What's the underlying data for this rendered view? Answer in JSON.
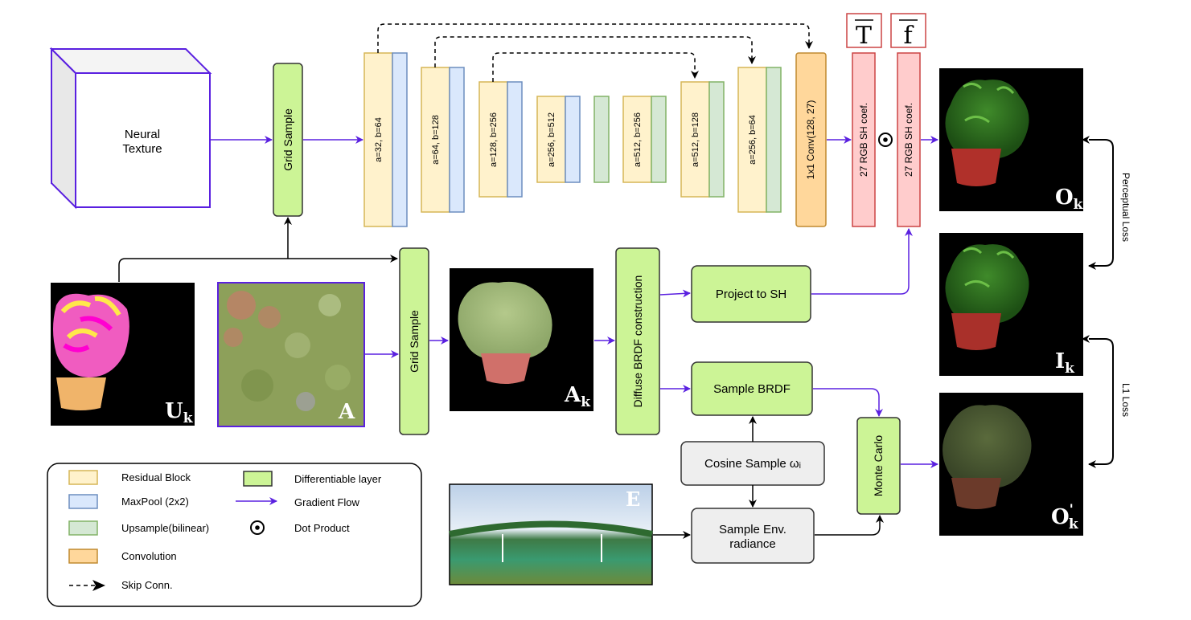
{
  "neural_texture": "Neural Texture",
  "grid_sample_1": "Grid Sample",
  "grid_sample_2": "Grid Sample",
  "blocks": [
    "a=32, b=64",
    "a=64, b=128",
    "a=128, b=256",
    "a=256, b=512",
    "a=512, b=256",
    "a=512, b=128",
    "a=256, b=64"
  ],
  "conv": "1x1 Conv(128, 27)",
  "sh_coef": "27 RGB SH coef.",
  "sh_coef_2": "27 RGB SH coef.",
  "t_bar": "T",
  "f_bar": "f",
  "dot_symbol": "⊙",
  "diffuse_brdf": "Diffuse BRDF construction",
  "project_sh": "Project to SH",
  "sample_brdf": "Sample BRDF",
  "cosine_sample": "Cosine Sample ωᵢ",
  "sample_env": [
    "Sample Env.",
    "radiance"
  ],
  "monte_carlo": "Monte Carlo",
  "perceptual_loss": "Perceptual Loss",
  "l1_loss": "L1 Loss",
  "image_labels": {
    "uk": {
      "base": "U",
      "sub": "k"
    },
    "a": "A",
    "ak": {
      "base": "A",
      "sub": "k"
    },
    "e": "E",
    "ok": {
      "base": "O",
      "sub": "k"
    },
    "ik": {
      "base": "I",
      "sub": "k"
    },
    "opk": {
      "base": "O",
      "sup": "'",
      "sub": "k"
    }
  },
  "legend": {
    "residual": "Residual Block",
    "maxpool": "MaxPool (2x2)",
    "upsample": "Upsample(bilinear)",
    "convolution": "Convolution",
    "skip": "Skip Conn.",
    "diff_layer": "Differentiable layer",
    "gradient": "Gradient Flow",
    "dot": "Dot Product"
  },
  "colors": {
    "residual": "#fff2cc",
    "maxpool": "#dae8fc",
    "upsample": "#d5e8d4",
    "convolution": "#ffd79b",
    "diff_layer": "#ccf496",
    "gradient": "#5a20e0",
    "gray_box": "#eeeeee",
    "sh_box": "#ffcccc"
  }
}
